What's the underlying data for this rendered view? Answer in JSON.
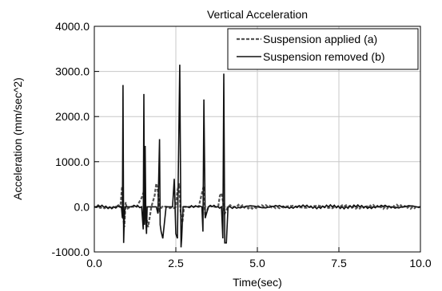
{
  "chart_data": {
    "type": "line",
    "title": "Vertical Acceleration",
    "xlabel": "Time(sec)",
    "ylabel": "Acceleration (mm/sec^2)",
    "xlim": [
      0,
      10
    ],
    "ylim": [
      -1000,
      4000
    ],
    "x_ticks": [
      0,
      2.5,
      5,
      7.5,
      10
    ],
    "x_tick_labels": [
      "0.0",
      "2.5",
      "5.0",
      "7.5",
      "10.0"
    ],
    "y_ticks": [
      -1000,
      0,
      1000,
      2000,
      3000,
      4000
    ],
    "y_tick_labels": [
      "-1000.0",
      "0.0",
      "1000.0",
      "2000.0",
      "3000.0",
      "4000.0"
    ],
    "grid": true,
    "legend_position": "top-right",
    "series": [
      {
        "name": "Suspension applied (a)",
        "style": "dashed",
        "color": "#555555",
        "x": [
          0,
          0.8,
          0.85,
          0.88,
          0.92,
          0.96,
          1.0,
          1.1,
          1.3,
          1.45,
          1.5,
          1.55,
          1.6,
          1.65,
          1.75,
          1.85,
          1.9,
          1.95,
          2.0,
          2.1,
          2.2,
          2.5,
          2.55,
          2.6,
          2.65,
          2.7,
          2.75,
          2.85,
          3.0,
          3.2,
          3.3,
          3.35,
          3.4,
          3.5,
          3.7,
          3.8,
          3.85,
          3.9,
          3.95,
          4.0,
          4.1,
          4.3,
          10
        ],
        "y": [
          0,
          0,
          450,
          -200,
          -450,
          100,
          -50,
          0,
          0,
          200,
          300,
          150,
          -250,
          -450,
          0,
          250,
          520,
          350,
          -80,
          20,
          0,
          0,
          350,
          520,
          -150,
          -350,
          0,
          0,
          0,
          0,
          300,
          450,
          -200,
          0,
          0,
          0,
          250,
          300,
          100,
          -150,
          0,
          0,
          0
        ]
      },
      {
        "name": "Suspension removed (b)",
        "style": "solid",
        "color": "#111111",
        "x": [
          0,
          0.83,
          0.86,
          0.88,
          0.9,
          0.92,
          0.94,
          0.98,
          1.1,
          1.45,
          1.5,
          1.52,
          1.54,
          1.56,
          1.58,
          1.6,
          1.62,
          1.65,
          1.75,
          1.9,
          1.95,
          2.0,
          2.02,
          2.05,
          2.1,
          2.2,
          2.4,
          2.45,
          2.5,
          2.55,
          2.62,
          2.66,
          2.68,
          2.72,
          2.78,
          2.85,
          3.3,
          3.33,
          3.36,
          3.4,
          3.5,
          3.9,
          3.94,
          3.97,
          4.0,
          4.05,
          4.1,
          4.3,
          10
        ],
        "y": [
          0,
          0,
          -250,
          2700,
          -800,
          -300,
          0,
          0,
          0,
          0,
          -500,
          2500,
          -400,
          1350,
          -300,
          -600,
          0,
          0,
          0,
          0,
          -150,
          1500,
          -400,
          -550,
          -700,
          0,
          0,
          620,
          -600,
          -700,
          3150,
          -900,
          -700,
          0,
          0,
          0,
          0,
          -550,
          2380,
          -250,
          0,
          0,
          -700,
          2950,
          -800,
          -800,
          0,
          0,
          0
        ]
      }
    ]
  }
}
